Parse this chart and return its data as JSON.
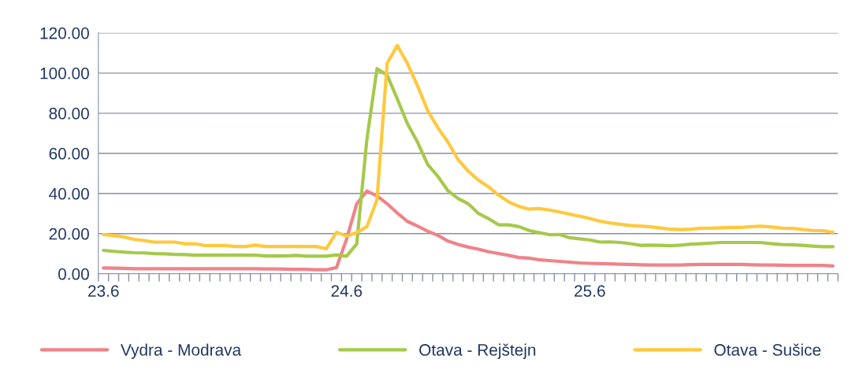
{
  "chart_data": {
    "type": "line",
    "categories": [
      "23.6",
      null,
      null,
      null,
      null,
      null,
      null,
      null,
      null,
      null,
      null,
      null,
      null,
      null,
      null,
      null,
      null,
      null,
      null,
      null,
      null,
      null,
      null,
      null,
      "24.6",
      null,
      null,
      null,
      null,
      null,
      null,
      null,
      null,
      null,
      null,
      null,
      null,
      null,
      null,
      null,
      null,
      null,
      null,
      null,
      null,
      null,
      null,
      null,
      "25.6",
      null,
      null,
      null,
      null,
      null,
      null,
      null,
      null,
      null,
      null,
      null,
      null,
      null,
      null,
      null,
      null,
      null,
      null,
      null,
      null,
      null,
      null,
      null,
      null
    ],
    "series": [
      {
        "name": "Vydra - Modrava",
        "color": "#ef8389",
        "values": [
          2.9,
          2.8,
          2.7,
          2.5,
          2.5,
          2.5,
          2.5,
          2.5,
          2.5,
          2.5,
          2.5,
          2.5,
          2.5,
          2.5,
          2.5,
          2.5,
          2.4,
          2.4,
          2.3,
          2.2,
          2.2,
          2.0,
          2.0,
          3.1,
          17.3,
          34.9,
          41.2,
          38.8,
          34.9,
          30.3,
          26.1,
          23.8,
          21.2,
          19.2,
          16.3,
          14.6,
          13.3,
          12.3,
          11.0,
          10.1,
          9.2,
          8.1,
          7.8,
          7.0,
          6.6,
          6.2,
          5.8,
          5.4,
          5.2,
          5.1,
          5.0,
          4.8,
          4.7,
          4.5,
          4.4,
          4.4,
          4.4,
          4.4,
          4.6,
          4.7,
          4.7,
          4.7,
          4.7,
          4.7,
          4.5,
          4.4,
          4.4,
          4.3,
          4.2,
          4.2,
          4.2,
          4.2,
          3.9
        ]
      },
      {
        "name": "Otava - Rejštejn",
        "color": "#a5c94a",
        "values": [
          11.7,
          11.2,
          10.8,
          10.5,
          10.4,
          10.1,
          10.0,
          9.7,
          9.6,
          9.3,
          9.3,
          9.3,
          9.3,
          9.3,
          9.3,
          9.3,
          8.9,
          8.9,
          8.9,
          9.2,
          8.8,
          8.8,
          8.8,
          9.4,
          8.8,
          14.9,
          66.9,
          102.2,
          99.0,
          87.2,
          74.8,
          65.6,
          54.5,
          48.6,
          41.4,
          37.5,
          34.9,
          30.1,
          27.5,
          24.4,
          24.4,
          23.5,
          21.6,
          20.5,
          19.5,
          19.6,
          18.0,
          17.4,
          16.9,
          15.8,
          15.9,
          15.6,
          15.0,
          14.2,
          14.3,
          14.2,
          14.0,
          14.3,
          14.8,
          15.0,
          15.3,
          15.6,
          15.6,
          15.6,
          15.6,
          15.5,
          15.0,
          14.6,
          14.5,
          14.2,
          13.8,
          13.5,
          13.5
        ]
      },
      {
        "name": "Otava - Sušice",
        "color": "#ffc83d",
        "values": [
          19.6,
          19.0,
          18.4,
          17.2,
          16.6,
          15.8,
          15.8,
          15.8,
          15.0,
          15.0,
          14.1,
          14.1,
          14.1,
          13.6,
          13.6,
          14.3,
          13.6,
          13.6,
          13.6,
          13.6,
          13.6,
          13.6,
          12.5,
          20.7,
          18.8,
          20.5,
          23.5,
          36.9,
          104.8,
          113.7,
          104.8,
          93.7,
          81.3,
          72.8,
          65.6,
          56.9,
          51.2,
          46.7,
          43.4,
          39.2,
          35.8,
          33.6,
          32.2,
          32.5,
          31.8,
          30.8,
          29.7,
          28.7,
          27.6,
          26.2,
          25.3,
          24.7,
          24.1,
          23.8,
          23.4,
          22.8,
          22.2,
          22.0,
          22.2,
          22.7,
          22.7,
          22.9,
          23.1,
          23.1,
          23.5,
          23.7,
          23.3,
          22.7,
          22.6,
          22.1,
          21.6,
          21.5,
          20.7
        ]
      }
    ],
    "ylim": [
      0,
      120
    ],
    "yticks": [
      {
        "value": 0,
        "label": "0.00"
      },
      {
        "value": 20,
        "label": "20.00"
      },
      {
        "value": 40,
        "label": "40.00"
      },
      {
        "value": 60,
        "label": "60.00"
      },
      {
        "value": 80,
        "label": "80.00"
      },
      {
        "value": 100,
        "label": "100.00"
      },
      {
        "value": 120,
        "label": "120.00"
      }
    ],
    "grid": "y",
    "legend": "bottom",
    "marker": "none",
    "line_style": "solid"
  }
}
